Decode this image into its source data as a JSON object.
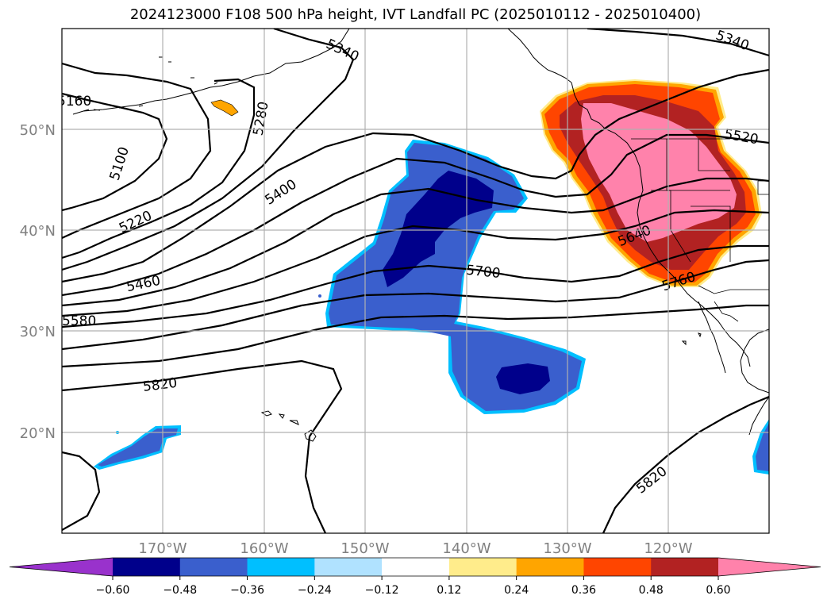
{
  "title": "2024123000 F108 500 hPa height, IVT Landfall PC (2025010112 - 2025010400)",
  "map": {
    "lat_labels": [
      "50°N",
      "40°N",
      "30°N",
      "20°N"
    ],
    "lon_labels": [
      "170°W",
      "160°W",
      "150°W",
      "140°W",
      "130°W",
      "120°W"
    ],
    "contour_labels": [
      "5160",
      "5100",
      "5220",
      "5280",
      "5340",
      "5340",
      "5400",
      "5460",
      "5520",
      "5580",
      "5640",
      "5700",
      "5760",
      "5820",
      "5820"
    ],
    "shading": {
      "positive_region": "US west coast",
      "negative_regions": [
        "central North Pacific",
        "subtropical North Pacific",
        "near Hawaii",
        "eastern tropical Pacific"
      ]
    }
  },
  "colorbar": {
    "ticks": [
      "−0.60",
      "−0.48",
      "−0.36",
      "−0.24",
      "−0.12",
      "0.12",
      "0.24",
      "0.36",
      "0.48",
      "0.60"
    ],
    "colors": [
      "#9932cc",
      "#00008b",
      "#3a5fcd",
      "#00bfff",
      "#b0e2ff",
      "#ffffff",
      "#ffec8b",
      "#ffa500",
      "#ff4500",
      "#b22222",
      "#ff82ab"
    ]
  }
}
